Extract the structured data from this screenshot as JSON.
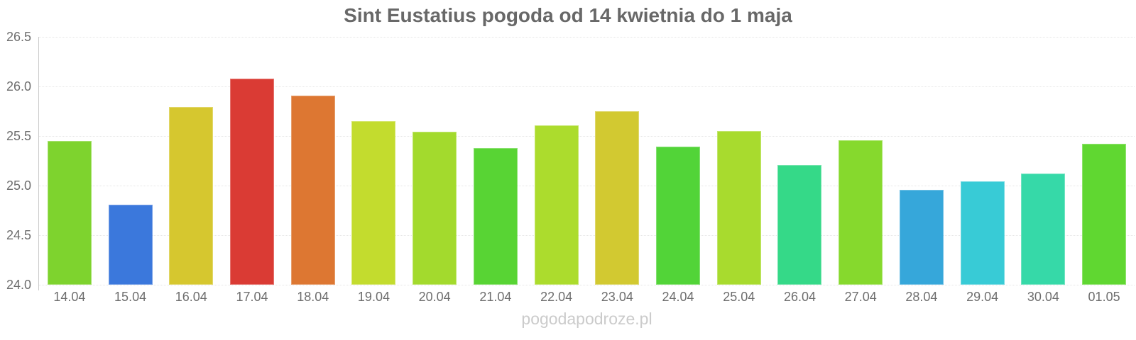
{
  "title": "Sint Eustatius pogoda od 14 kwietnia do 1 maja",
  "watermark": "pogodapodroze.pl",
  "chart_data": {
    "type": "bar",
    "title": "Sint Eustatius pogoda od 14 kwietnia do 1 maja",
    "categories": [
      "14.04",
      "15.04",
      "16.04",
      "17.04",
      "18.04",
      "19.04",
      "20.04",
      "21.04",
      "22.04",
      "23.04",
      "24.04",
      "25.04",
      "26.04",
      "27.04",
      "28.04",
      "29.04",
      "30.04",
      "01.05"
    ],
    "values": [
      25.45,
      24.81,
      25.79,
      26.08,
      25.91,
      25.65,
      25.54,
      25.38,
      25.61,
      25.75,
      25.39,
      25.55,
      25.21,
      25.46,
      24.96,
      25.04,
      25.12,
      25.42
    ],
    "bar_colors": [
      "#7ED32E",
      "#3B78DC",
      "#D6C72F",
      "#DA3B34",
      "#DD7732",
      "#C3DC2E",
      "#A3DA2D",
      "#58D434",
      "#ACDC2D",
      "#D2C931",
      "#52D438",
      "#A8DB2E",
      "#35D988",
      "#86D92D",
      "#36A7DA",
      "#38CBD6",
      "#36D9A8",
      "#60D731"
    ],
    "xlabel": "",
    "ylabel": "",
    "ylim": [
      24.0,
      26.5
    ],
    "y_ticks": [
      24.0,
      24.5,
      25.0,
      25.5,
      26.0,
      26.5
    ],
    "y_tick_decimals": 1,
    "grid": "horizontal-dotted",
    "legend_position": "none"
  },
  "colors": {
    "background": "#FFFFFF",
    "title": "#686868",
    "tick_label": "#6E6E6E",
    "axis_line": "#C9C9C9",
    "gridline": "#E6E6E6",
    "watermark": "#CBCBCB"
  }
}
